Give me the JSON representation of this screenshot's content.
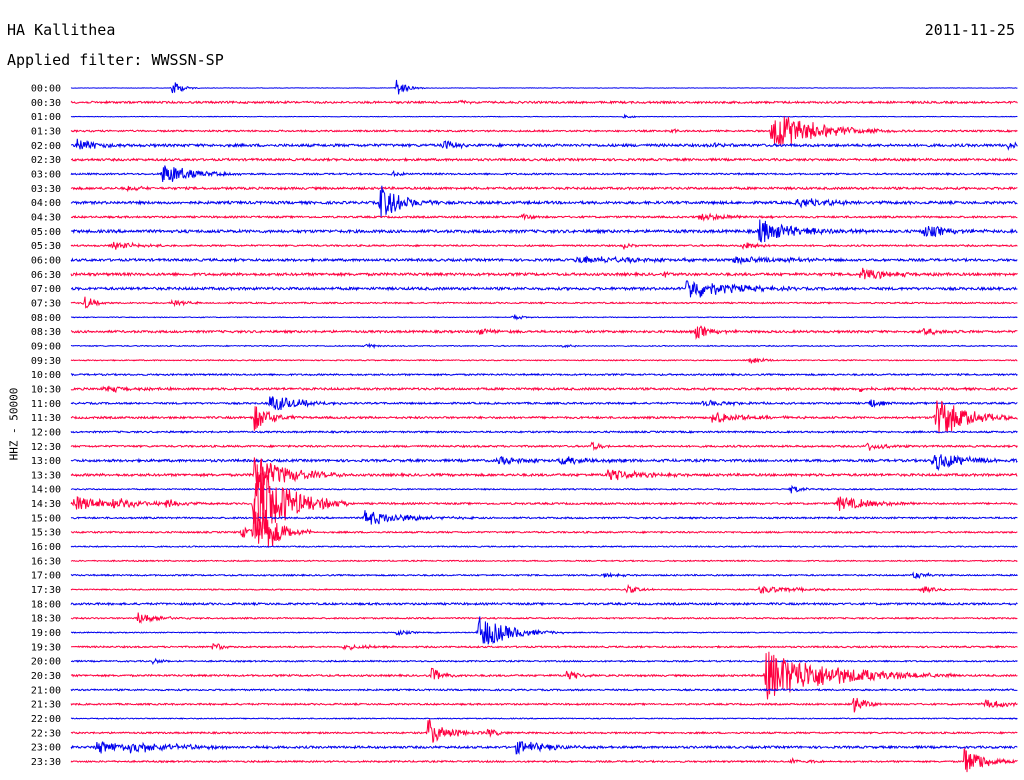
{
  "header": {
    "station": "HA Kallithea",
    "date": "2011-11-25",
    "filter": "Applied filter: WWSSN-SP"
  },
  "chart_data": {
    "type": "line",
    "title": "HA Kallithea",
    "ylabel": "HHZ - 50000",
    "row_labels": [
      "00:00",
      "00:30",
      "01:00",
      "01:30",
      "02:00",
      "02:30",
      "03:00",
      "03:30",
      "04:00",
      "04:30",
      "05:00",
      "05:30",
      "06:00",
      "06:30",
      "07:00",
      "07:30",
      "08:00",
      "08:30",
      "09:00",
      "09:30",
      "10:00",
      "10:30",
      "11:00",
      "11:30",
      "12:00",
      "12:30",
      "13:00",
      "13:30",
      "14:00",
      "14:30",
      "15:00",
      "15:30",
      "16:00",
      "16:30",
      "17:00",
      "17:30",
      "18:00",
      "18:30",
      "19:00",
      "19:30",
      "20:00",
      "20:30",
      "21:00",
      "21:30",
      "22:00",
      "22:30",
      "23:00",
      "23:30"
    ],
    "row_minutes": 30,
    "grid": false,
    "legend": "none",
    "colors": {
      "even_rows": "#0000ee",
      "odd_rows": "#ff0040"
    },
    "noise": [
      0.4,
      2.0,
      0.6,
      1.6,
      2.6,
      2.2,
      1.6,
      2.2,
      2.6,
      1.8,
      2.8,
      1.6,
      2.4,
      2.6,
      2.6,
      1.4,
      0.8,
      2.2,
      1.0,
      1.0,
      1.6,
      2.2,
      1.8,
      2.0,
      1.6,
      1.8,
      2.4,
      2.4,
      1.2,
      1.8,
      1.6,
      1.6,
      1.2,
      1.2,
      1.4,
      1.2,
      2.0,
      1.4,
      1.0,
      1.6,
      1.4,
      1.8,
      1.6,
      1.6,
      1.0,
      1.6,
      2.2,
      1.6
    ],
    "events": [
      {
        "row": 0,
        "min": 3.2,
        "amp": 8,
        "dur": 0.3
      },
      {
        "row": 0,
        "min": 10.3,
        "amp": 10,
        "dur": 0.3
      },
      {
        "row": 1,
        "min": 12.3,
        "amp": 2,
        "dur": 0.3
      },
      {
        "row": 2,
        "min": 17.5,
        "amp": 3,
        "dur": 0.2
      },
      {
        "row": 3,
        "min": 19.0,
        "amp": 3,
        "dur": 0.2
      },
      {
        "row": 3,
        "min": 22.2,
        "amp": 22,
        "dur": 1.2
      },
      {
        "row": 3,
        "min": 23.0,
        "amp": 3,
        "dur": 2.0
      },
      {
        "row": 4,
        "min": 0.2,
        "amp": 8,
        "dur": 0.5
      },
      {
        "row": 4,
        "min": 11.8,
        "amp": 6,
        "dur": 0.4
      },
      {
        "row": 4,
        "min": 20.3,
        "amp": 3,
        "dur": 0.3
      },
      {
        "row": 4,
        "min": 29.7,
        "amp": 5,
        "dur": 0.3
      },
      {
        "row": 6,
        "min": 2.9,
        "amp": 11,
        "dur": 0.9
      },
      {
        "row": 6,
        "min": 10.2,
        "amp": 3,
        "dur": 0.3
      },
      {
        "row": 7,
        "min": 1.8,
        "amp": 3,
        "dur": 0.4
      },
      {
        "row": 8,
        "min": 9.8,
        "amp": 18,
        "dur": 0.7
      },
      {
        "row": 8,
        "min": 23.0,
        "amp": 5,
        "dur": 1.2
      },
      {
        "row": 9,
        "min": 14.3,
        "amp": 3,
        "dur": 0.3
      },
      {
        "row": 9,
        "min": 19.9,
        "amp": 4,
        "dur": 1.0
      },
      {
        "row": 10,
        "min": 21.8,
        "amp": 12,
        "dur": 1.2
      },
      {
        "row": 10,
        "min": 27.0,
        "amp": 7,
        "dur": 0.8
      },
      {
        "row": 11,
        "min": 1.3,
        "amp": 4,
        "dur": 0.8
      },
      {
        "row": 11,
        "min": 17.5,
        "amp": 4,
        "dur": 0.2
      },
      {
        "row": 11,
        "min": 21.3,
        "amp": 7,
        "dur": 0.3
      },
      {
        "row": 12,
        "min": 16.0,
        "amp": 4,
        "dur": 2.0
      },
      {
        "row": 12,
        "min": 21.0,
        "amp": 4,
        "dur": 1.5
      },
      {
        "row": 13,
        "min": 18.8,
        "amp": 3,
        "dur": 0.3
      },
      {
        "row": 13,
        "min": 25.0,
        "amp": 6,
        "dur": 1.0
      },
      {
        "row": 14,
        "min": 19.5,
        "amp": 12,
        "dur": 1.2
      },
      {
        "row": 15,
        "min": 0.4,
        "amp": 8,
        "dur": 0.3
      },
      {
        "row": 15,
        "min": 3.2,
        "amp": 3,
        "dur": 0.5
      },
      {
        "row": 16,
        "min": 14.0,
        "amp": 3,
        "dur": 0.3
      },
      {
        "row": 17,
        "min": 12.9,
        "amp": 4,
        "dur": 0.5
      },
      {
        "row": 17,
        "min": 19.8,
        "amp": 7,
        "dur": 0.5
      },
      {
        "row": 17,
        "min": 27.0,
        "amp": 4,
        "dur": 0.5
      },
      {
        "row": 18,
        "min": 9.3,
        "amp": 3,
        "dur": 0.3
      },
      {
        "row": 18,
        "min": 15.6,
        "amp": 3,
        "dur": 0.3
      },
      {
        "row": 19,
        "min": 21.5,
        "amp": 4,
        "dur": 0.4
      },
      {
        "row": 21,
        "min": 1.0,
        "amp": 4,
        "dur": 0.8
      },
      {
        "row": 21,
        "min": 25.0,
        "amp": 3,
        "dur": 0.3
      },
      {
        "row": 22,
        "min": 6.3,
        "amp": 9,
        "dur": 0.9
      },
      {
        "row": 22,
        "min": 20.0,
        "amp": 3,
        "dur": 1.0
      },
      {
        "row": 22,
        "min": 25.3,
        "amp": 6,
        "dur": 0.3
      },
      {
        "row": 23,
        "min": 5.8,
        "amp": 14,
        "dur": 0.5
      },
      {
        "row": 23,
        "min": 20.3,
        "amp": 6,
        "dur": 1.0
      },
      {
        "row": 23,
        "min": 27.4,
        "amp": 22,
        "dur": 0.9
      },
      {
        "row": 25,
        "min": 16.5,
        "amp": 5,
        "dur": 0.3
      },
      {
        "row": 25,
        "min": 25.2,
        "amp": 5,
        "dur": 0.5
      },
      {
        "row": 26,
        "min": 13.5,
        "amp": 4,
        "dur": 1.0
      },
      {
        "row": 26,
        "min": 15.5,
        "amp": 4,
        "dur": 1.2
      },
      {
        "row": 26,
        "min": 27.3,
        "amp": 10,
        "dur": 1.0
      },
      {
        "row": 27,
        "min": 17.0,
        "amp": 6,
        "dur": 1.0
      },
      {
        "row": 27,
        "min": 5.8,
        "amp": 20,
        "dur": 1.0
      },
      {
        "row": 28,
        "min": 22.8,
        "amp": 4,
        "dur": 0.4
      },
      {
        "row": 29,
        "min": 0.1,
        "amp": 8,
        "dur": 1.0
      },
      {
        "row": 29,
        "min": 1.3,
        "amp": 6,
        "dur": 0.7
      },
      {
        "row": 29,
        "min": 3.0,
        "amp": 5,
        "dur": 0.5
      },
      {
        "row": 29,
        "min": 5.8,
        "amp": 45,
        "dur": 1.0
      },
      {
        "row": 29,
        "min": 24.3,
        "amp": 8,
        "dur": 1.0
      },
      {
        "row": 30,
        "min": 9.3,
        "amp": 8,
        "dur": 1.2
      },
      {
        "row": 31,
        "min": 5.4,
        "amp": 6,
        "dur": 0.8
      },
      {
        "row": 31,
        "min": 5.8,
        "amp": 35,
        "dur": 0.6
      },
      {
        "row": 34,
        "min": 16.9,
        "amp": 3,
        "dur": 0.4
      },
      {
        "row": 34,
        "min": 26.7,
        "amp": 4,
        "dur": 0.4
      },
      {
        "row": 35,
        "min": 17.6,
        "amp": 4,
        "dur": 0.4
      },
      {
        "row": 35,
        "min": 21.8,
        "amp": 4,
        "dur": 1.2
      },
      {
        "row": 35,
        "min": 26.9,
        "amp": 4,
        "dur": 0.4
      },
      {
        "row": 37,
        "min": 2.1,
        "amp": 6,
        "dur": 0.7
      },
      {
        "row": 38,
        "min": 10.3,
        "amp": 4,
        "dur": 0.3
      },
      {
        "row": 38,
        "min": 12.9,
        "amp": 18,
        "dur": 0.9
      },
      {
        "row": 39,
        "min": 4.5,
        "amp": 5,
        "dur": 0.3
      },
      {
        "row": 39,
        "min": 8.6,
        "amp": 3,
        "dur": 0.8
      },
      {
        "row": 40,
        "min": 2.6,
        "amp": 3,
        "dur": 0.3
      },
      {
        "row": 41,
        "min": 11.4,
        "amp": 8,
        "dur": 0.4
      },
      {
        "row": 41,
        "min": 15.7,
        "amp": 5,
        "dur": 0.4
      },
      {
        "row": 41,
        "min": 22.0,
        "amp": 26,
        "dur": 2.0
      },
      {
        "row": 43,
        "min": 24.8,
        "amp": 11,
        "dur": 0.3
      },
      {
        "row": 43,
        "min": 28.9,
        "amp": 5,
        "dur": 0.8
      },
      {
        "row": 45,
        "min": 11.3,
        "amp": 14,
        "dur": 0.6
      },
      {
        "row": 45,
        "min": 13.2,
        "amp": 4,
        "dur": 0.4
      },
      {
        "row": 46,
        "min": 0.8,
        "amp": 7,
        "dur": 1.0
      },
      {
        "row": 46,
        "min": 1.9,
        "amp": 6,
        "dur": 1.5
      },
      {
        "row": 46,
        "min": 14.1,
        "amp": 7,
        "dur": 1.0
      },
      {
        "row": 47,
        "min": 28.3,
        "amp": 16,
        "dur": 0.6
      },
      {
        "row": 47,
        "min": 22.8,
        "amp": 3,
        "dur": 0.5
      }
    ]
  }
}
